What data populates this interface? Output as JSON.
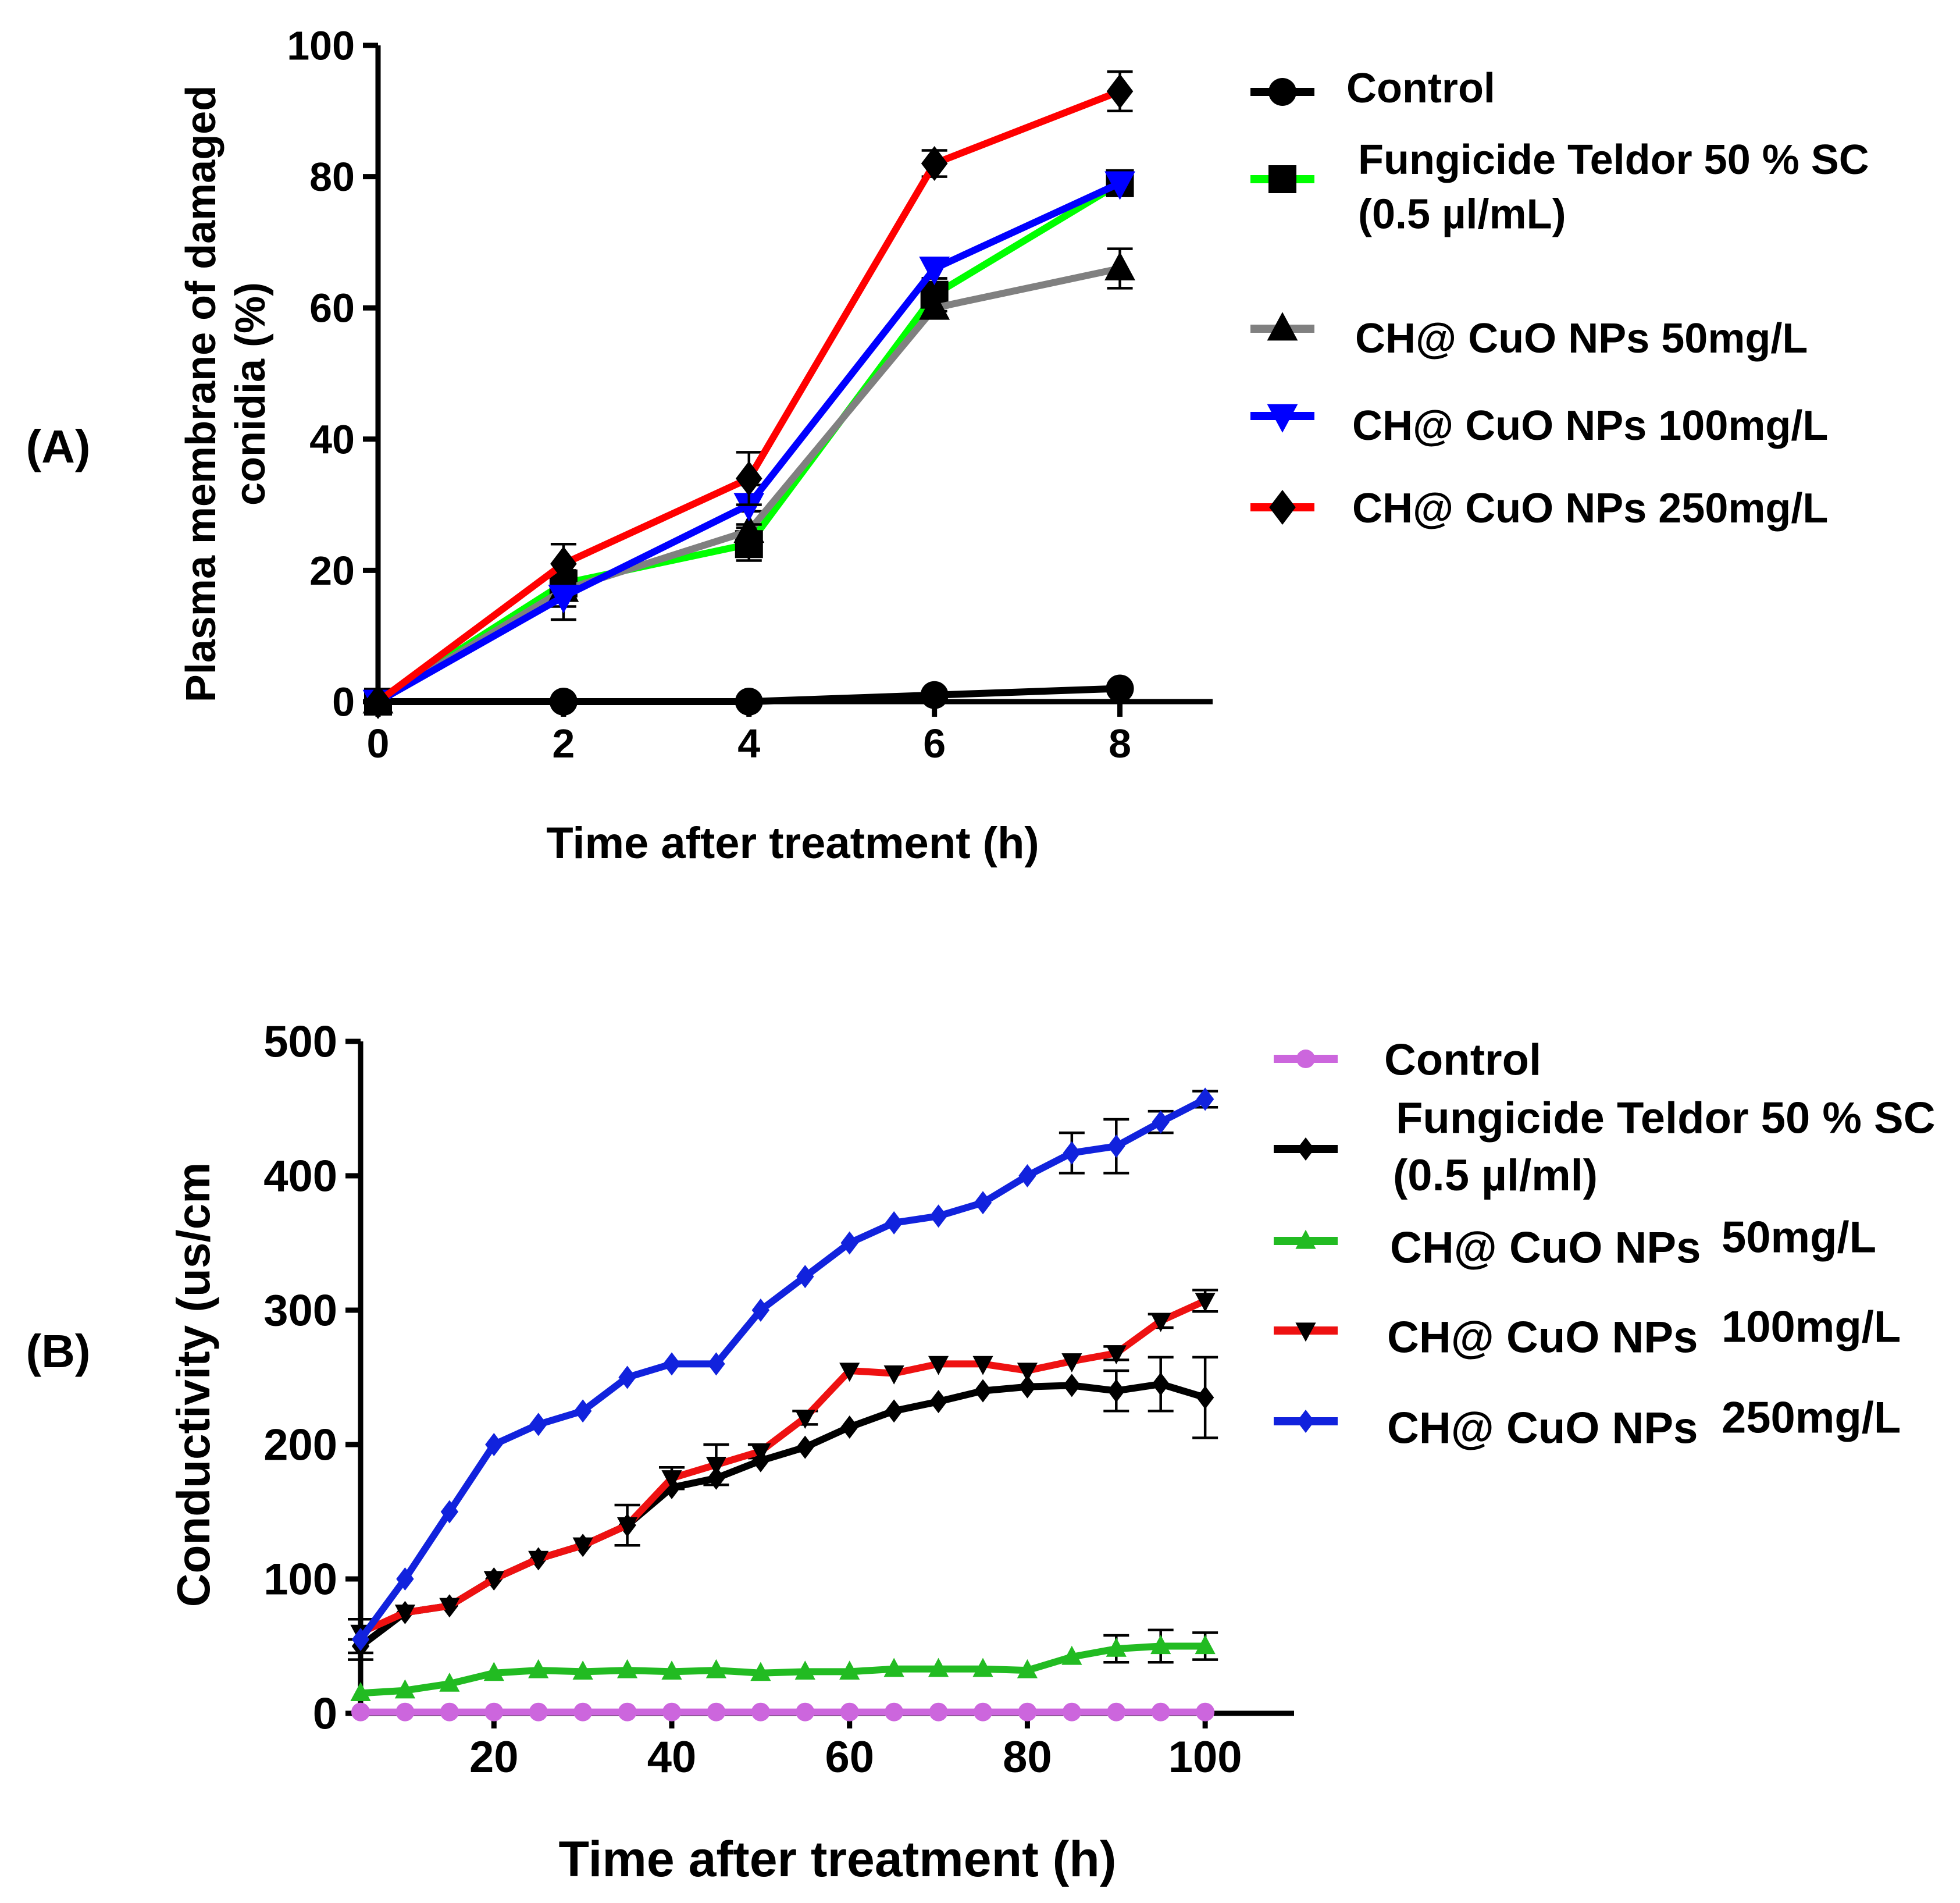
{
  "chart_data": [
    {
      "panel_label": "(A)",
      "type": "line",
      "title": "",
      "xlabel": "Time after treatment (h)",
      "ylabel_lines": [
        "Plasma membrane of damaged",
        "conidia (%)"
      ],
      "xlim": [
        0,
        9
      ],
      "ylim": [
        0,
        100
      ],
      "xticks": [
        0,
        2,
        4,
        6,
        8
      ],
      "yticks": [
        0,
        20,
        40,
        60,
        80,
        100
      ],
      "x": [
        0,
        2,
        4,
        6,
        8
      ],
      "legend_position": "right",
      "series": [
        {
          "name": "Control",
          "legend_lines": [
            "Control"
          ],
          "color": "#000000",
          "marker": "circle",
          "values": [
            0,
            0,
            0,
            1,
            2
          ],
          "errors": [
            0,
            0,
            0,
            0.5,
            0.5
          ]
        },
        {
          "name": "Fungicide Teldor 50 % SC (0.5 µl/mL)",
          "legend_lines": [
            "Fungicide Teldor 50 % SC",
            "(0.5 µl/mL)"
          ],
          "color": "#00ff00",
          "marker_color": "#000000",
          "marker": "square",
          "values": [
            0,
            18,
            24,
            62,
            79
          ],
          "errors": [
            0,
            2,
            2.5,
            2.5,
            1.5
          ]
        },
        {
          "name": "CH@ CuO NPs 50mg/L",
          "legend_lines": [
            "CH@ CuO NPs 50mg/L"
          ],
          "color": "#808080",
          "marker_color": "#000000",
          "marker": "triangle-up",
          "values": [
            0,
            17,
            26,
            60,
            66
          ],
          "errors": [
            0,
            2.5,
            3,
            1.5,
            3
          ]
        },
        {
          "name": "CH@ CuO NPs 100mg/L",
          "legend_lines": [
            "CH@ CuO NPs 100mg/L"
          ],
          "color": "#0000ff",
          "marker": "triangle-down",
          "values": [
            0,
            16,
            30,
            66,
            79
          ],
          "errors": [
            0,
            3.5,
            3,
            1.5,
            1.5
          ]
        },
        {
          "name": "CH@ CuO NPs 250mg/L",
          "legend_lines": [
            "CH@ CuO NPs 250mg/L"
          ],
          "color": "#ff0000",
          "marker_color": "#000000",
          "marker": "diamond",
          "values": [
            0,
            21,
            34,
            82,
            93
          ],
          "errors": [
            0,
            3,
            4,
            2,
            3
          ]
        }
      ]
    },
    {
      "panel_label": "(B)",
      "type": "line",
      "title": "",
      "xlabel": "Time after treatment (h)",
      "ylabel_lines": [
        "Conductivity (us/cm"
      ],
      "xlim": [
        5,
        110
      ],
      "ylim": [
        0,
        500
      ],
      "xticks": [
        20,
        40,
        60,
        80,
        100
      ],
      "yticks": [
        0,
        100,
        200,
        300,
        400,
        500
      ],
      "x": [
        5,
        10,
        15,
        20,
        25,
        30,
        35,
        40,
        45,
        50,
        55,
        60,
        65,
        70,
        75,
        80,
        85,
        90,
        95,
        100
      ],
      "legend_position": "right",
      "series": [
        {
          "name": "Control",
          "legend_lines": [
            "Control"
          ],
          "color": "#cc66dd",
          "marker": "circle",
          "values": [
            1,
            1,
            1,
            1,
            1,
            1,
            1,
            1,
            1,
            1,
            1,
            1,
            1,
            1,
            1,
            1,
            1,
            1,
            1,
            1
          ],
          "errors": [
            0,
            0,
            0,
            0,
            0,
            0,
            0,
            0,
            0,
            0,
            0,
            0,
            0,
            0,
            0,
            0,
            0,
            0,
            0,
            0
          ]
        },
        {
          "name": "Fungicide Teldor 50 % SC (0.5 µl/ml)",
          "legend_lines": [
            "Fungicide Teldor 50 % SC",
            "(0.5 µl/ml)"
          ],
          "color": "#000000",
          "marker": "diamond",
          "values": [
            50,
            75,
            80,
            100,
            115,
            125,
            140,
            168,
            175,
            188,
            198,
            213,
            225,
            232,
            240,
            243,
            244,
            240,
            245,
            235
          ],
          "errors": [
            5,
            0,
            0,
            0,
            0,
            0,
            15,
            0,
            0,
            0,
            0,
            0,
            0,
            0,
            0,
            0,
            0,
            15,
            20,
            30
          ]
        },
        {
          "name": "CH@ CuO NPs 50mg/L",
          "legend_lines": [
            "CH@ CuO NPs",
            "50mg/L"
          ],
          "color": "#22bb22",
          "marker": "triangle-up",
          "values": [
            15,
            17,
            22,
            30,
            32,
            31,
            32,
            31,
            32,
            30,
            31,
            31,
            33,
            33,
            33,
            32,
            42,
            48,
            50,
            50
          ],
          "errors": [
            0,
            0,
            0,
            0,
            0,
            0,
            0,
            0,
            0,
            0,
            0,
            0,
            0,
            0,
            0,
            0,
            0,
            10,
            12,
            10
          ]
        },
        {
          "name": "CH@ CuO NPs 100mg/L",
          "legend_lines": [
            "CH@ CuO NPs",
            "100mg/L"
          ],
          "color": "#ee1111",
          "marker": "triangle-down",
          "marker_color": "#000000",
          "values": [
            60,
            75,
            80,
            100,
            115,
            125,
            140,
            175,
            185,
            195,
            220,
            255,
            253,
            260,
            260,
            255,
            262,
            268,
            292,
            307
          ],
          "errors": [
            0,
            0,
            0,
            0,
            0,
            0,
            0,
            8,
            15,
            5,
            5,
            0,
            0,
            0,
            0,
            0,
            0,
            5,
            5,
            8
          ]
        },
        {
          "name": "CH@ CuO NPs 250mg/L",
          "legend_lines": [
            "CH@ CuO NPs",
            "250mg/L"
          ],
          "color": "#1122dd",
          "marker": "diamond",
          "marker_color": "#1122dd",
          "values": [
            55,
            100,
            150,
            200,
            215,
            225,
            250,
            260,
            260,
            300,
            325,
            350,
            365,
            370,
            380,
            400,
            417,
            422,
            440,
            457
          ],
          "errors": [
            15,
            0,
            0,
            0,
            0,
            0,
            0,
            0,
            0,
            0,
            0,
            0,
            0,
            0,
            0,
            0,
            15,
            20,
            8,
            6
          ]
        }
      ]
    }
  ]
}
